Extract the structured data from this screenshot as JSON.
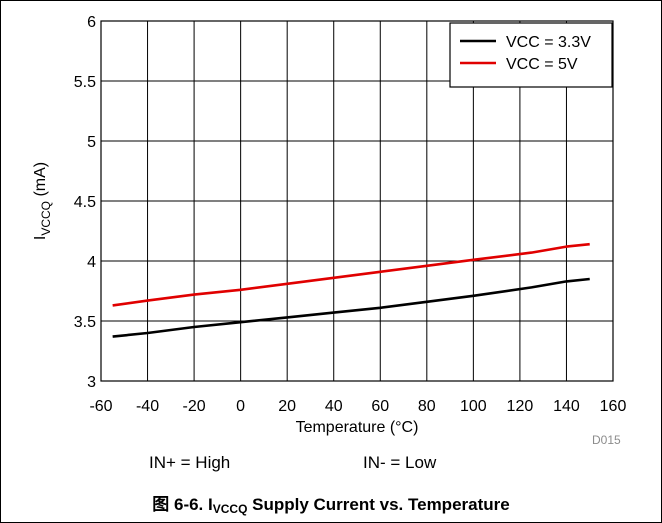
{
  "chart_data": {
    "type": "line",
    "xlabel": "Temperature (°C)",
    "ylabel": "IVCCQ (mA)",
    "ylabel_parts": {
      "main": "I",
      "sub": "VCCQ",
      "rest": " (mA)"
    },
    "xlim": [
      -60,
      160
    ],
    "ylim": [
      3,
      6
    ],
    "xticks": [
      -60,
      -40,
      -20,
      0,
      20,
      40,
      60,
      80,
      100,
      120,
      140,
      160
    ],
    "yticks": [
      3,
      3.5,
      4,
      4.5,
      5,
      5.5,
      6
    ],
    "grid": true,
    "legend_position": "top-right",
    "series": [
      {
        "name": "VCC = 3.3V",
        "color": "#000000",
        "x": [
          -55,
          -40,
          -20,
          0,
          20,
          40,
          60,
          80,
          100,
          125,
          140,
          150
        ],
        "y": [
          3.37,
          3.4,
          3.45,
          3.49,
          3.53,
          3.57,
          3.61,
          3.66,
          3.71,
          3.78,
          3.83,
          3.85
        ]
      },
      {
        "name": "VCC = 5V",
        "color": "#e00000",
        "x": [
          -55,
          -40,
          -20,
          0,
          20,
          40,
          60,
          80,
          100,
          125,
          140,
          150
        ],
        "y": [
          3.63,
          3.67,
          3.72,
          3.76,
          3.81,
          3.86,
          3.91,
          3.96,
          4.01,
          4.07,
          4.12,
          4.14
        ]
      }
    ]
  },
  "figure_id": "D015",
  "notes": {
    "in_plus": "IN+ = High",
    "in_minus": "IN- = Low"
  },
  "caption": {
    "prefix": "图 6-6. I",
    "sub": "VCCQ",
    "suffix": " Supply Current vs. Temperature"
  }
}
